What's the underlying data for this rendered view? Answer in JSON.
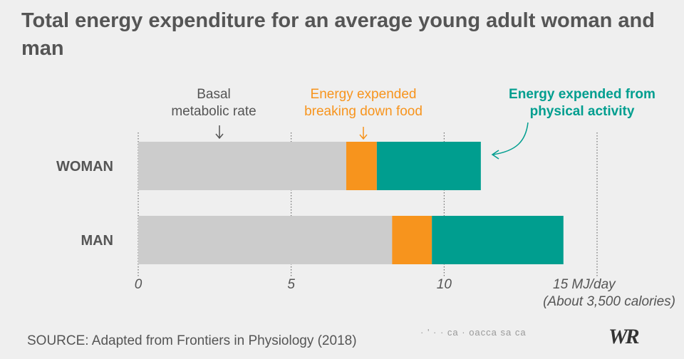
{
  "title": "Total energy expenditure for an average young adult woman and man",
  "source": "SOURCE: Adapted from Frontiers in Physiology (2018)",
  "blurred_text": "· ' · · ca · oacca sa ca",
  "logo": "WR",
  "colors": {
    "background": "#efefef",
    "basal": "#cccccc",
    "food": "#f7941d",
    "activity": "#009e8f",
    "text": "#555555"
  },
  "chart_data": {
    "type": "bar",
    "orientation": "horizontal",
    "stacked": true,
    "title": "Total energy expenditure for an average young adult woman and man",
    "categories": [
      "WOMAN",
      "MAN"
    ],
    "series": [
      {
        "name": "Basal metabolic rate",
        "values": [
          6.8,
          8.3
        ],
        "color": "#cccccc"
      },
      {
        "name": "Energy expended breaking down food",
        "values": [
          1.0,
          1.3
        ],
        "color": "#f7941d"
      },
      {
        "name": "Energy expended from physical activity",
        "values": [
          3.4,
          4.3
        ],
        "color": "#009e8f"
      }
    ],
    "xlim": [
      0,
      15
    ],
    "xticks": [
      "0",
      "5",
      "10",
      "15 MJ/day"
    ],
    "xtick_values": [
      0,
      5,
      10,
      15
    ],
    "xtick_note": "(About 3,500 calories)",
    "grid": "vertical dotted",
    "annotations": {
      "basal": [
        "Basal",
        "metabolic rate"
      ],
      "food": [
        "Energy expended",
        "breaking down food"
      ],
      "activity": [
        "Energy expended from",
        "physical activity"
      ]
    }
  }
}
